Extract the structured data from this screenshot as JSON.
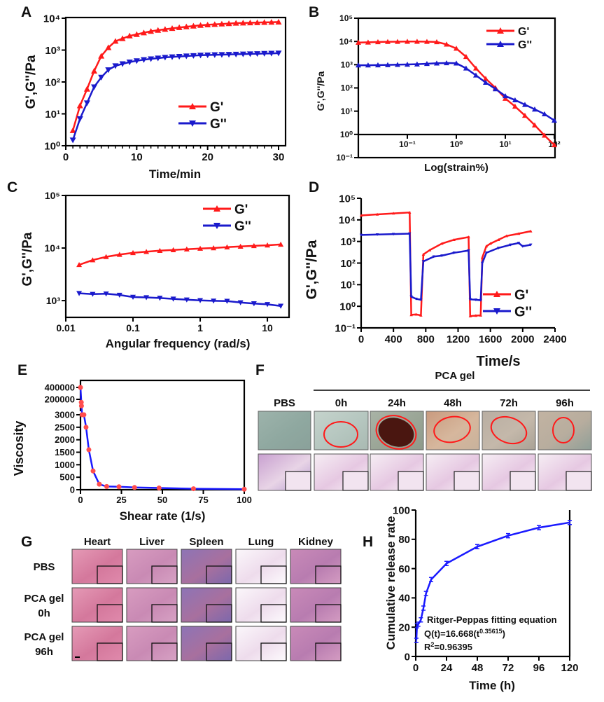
{
  "panel_labels": [
    "A",
    "B",
    "C",
    "D",
    "E",
    "F",
    "G",
    "H"
  ],
  "chart_data": [
    {
      "panel": "A",
      "type": "line",
      "xlabel": "Time/min",
      "ylabel": "G',G''/Pa",
      "xscale": "linear",
      "yscale": "log",
      "xlim": [
        0,
        30
      ],
      "ylim": [
        1,
        10000
      ],
      "xticks": [
        0,
        10,
        20,
        30
      ],
      "xtick_labels": [
        "0",
        "10",
        "20",
        "30"
      ],
      "yticks": [
        1,
        10,
        100,
        1000,
        10000
      ],
      "ytick_labels": [
        "10⁰",
        "10¹",
        "10²",
        "10³",
        "10⁴"
      ],
      "legend": "bottom-right",
      "grid": false,
      "x": [
        1,
        2,
        3,
        4,
        5,
        6,
        7,
        8,
        9,
        10,
        11,
        12,
        13,
        14,
        15,
        16,
        17,
        18,
        19,
        20,
        21,
        22,
        23,
        24,
        25,
        26,
        27,
        28,
        29,
        30
      ],
      "series": [
        {
          "name": "G'",
          "color": "#ff1a1a",
          "marker": "triangle-up",
          "values": [
            3,
            18,
            60,
            220,
            650,
            1200,
            1900,
            2300,
            2800,
            3100,
            3500,
            3900,
            4200,
            4500,
            4800,
            5100,
            5400,
            5700,
            6000,
            6200,
            6400,
            6600,
            6800,
            7000,
            7100,
            7200,
            7300,
            7400,
            7500,
            7600
          ]
        },
        {
          "name": "G''",
          "color": "#1a1acc",
          "marker": "triangle-down",
          "values": [
            1.5,
            7,
            22,
            70,
            140,
            240,
            320,
            370,
            420,
            460,
            500,
            530,
            560,
            590,
            610,
            630,
            650,
            670,
            690,
            700,
            710,
            720,
            730,
            740,
            750,
            760,
            770,
            780,
            790,
            800
          ]
        }
      ]
    },
    {
      "panel": "B",
      "type": "line",
      "xlabel": "Log(strain%)",
      "ylabel": "G',G''/Pa",
      "xscale": "log",
      "yscale": "log",
      "xlim": [
        0.01,
        100
      ],
      "ylim": [
        0.1,
        100000
      ],
      "xticks": [
        0.1,
        1,
        10,
        100
      ],
      "xtick_labels": [
        "10⁻¹",
        "10⁰",
        "10¹",
        "10²"
      ],
      "yticks": [
        0.1,
        1,
        10,
        100,
        1000,
        10000,
        100000
      ],
      "ytick_labels": [
        "10⁻¹",
        "10⁰",
        "10¹",
        "10²",
        "10³",
        "10⁴",
        "10⁵"
      ],
      "legend": "top-right",
      "grid": false,
      "x": [
        0.01,
        0.0158,
        0.0251,
        0.0398,
        0.0631,
        0.1,
        0.158,
        0.251,
        0.398,
        0.631,
        1,
        1.58,
        2.51,
        3.98,
        6.31,
        10,
        15.8,
        25.1,
        39.8,
        63.1,
        100
      ],
      "series": [
        {
          "name": "G'",
          "color": "#ff1a1a",
          "marker": "triangle-up",
          "values": [
            9000,
            9200,
            9500,
            9700,
            9800,
            9900,
            9900,
            9800,
            9500,
            7500,
            5000,
            2200,
            700,
            250,
            100,
            35,
            16,
            6.5,
            2.5,
            0.9,
            0.35
          ]
        },
        {
          "name": "G''",
          "color": "#1a1acc",
          "marker": "triangle-up",
          "values": [
            950,
            950,
            960,
            980,
            1000,
            1020,
            1050,
            1100,
            1150,
            1180,
            1150,
            700,
            350,
            170,
            90,
            45,
            30,
            19,
            12,
            7.5,
            4
          ]
        }
      ]
    },
    {
      "panel": "C",
      "type": "line",
      "xlabel": "Angular frequency (rad/s)",
      "ylabel": "G',G''/Pa",
      "xscale": "log",
      "yscale": "log",
      "xlim": [
        0.01,
        21
      ],
      "ylim": [
        480,
        100000
      ],
      "xticks": [
        0.01,
        0.1,
        1,
        10
      ],
      "xtick_labels": [
        "0.01",
        "0.1",
        "1",
        "10"
      ],
      "yticks": [
        1000,
        10000,
        100000
      ],
      "ytick_labels": [
        "10³",
        "10⁴",
        "10⁵"
      ],
      "legend": "top-right",
      "grid": false,
      "x": [
        0.0158,
        0.0251,
        0.0398,
        0.0631,
        0.1,
        0.158,
        0.251,
        0.398,
        0.631,
        1,
        1.58,
        2.51,
        3.98,
        6.31,
        10,
        15.8
      ],
      "series": [
        {
          "name": "G'",
          "color": "#ff1a1a",
          "marker": "triangle-up",
          "values": [
            4800,
            5900,
            6800,
            7500,
            8100,
            8500,
            8900,
            9200,
            9500,
            9800,
            10000,
            10400,
            10700,
            11000,
            11300,
            11700
          ]
        },
        {
          "name": "G''",
          "color": "#1a1acc",
          "marker": "triangle-down",
          "values": [
            1380,
            1330,
            1350,
            1280,
            1170,
            1150,
            1120,
            1080,
            1040,
            1010,
            990,
            980,
            920,
            880,
            850,
            790
          ]
        }
      ]
    },
    {
      "panel": "D",
      "type": "line",
      "xlabel": "Time/s",
      "ylabel": "G',G''/Pa",
      "xscale": "linear",
      "yscale": "log",
      "xlim": [
        0,
        2400
      ],
      "ylim": [
        0.1,
        100000
      ],
      "xticks": [
        0,
        400,
        800,
        1200,
        1600,
        2000,
        2400
      ],
      "xtick_labels": [
        "0",
        "400",
        "800",
        "1200",
        "1600",
        "2000",
        "2400"
      ],
      "yticks": [
        0.1,
        1,
        10,
        100,
        1000,
        10000,
        100000
      ],
      "ytick_labels": [
        "10⁻¹",
        "10⁰",
        "10¹",
        "10²",
        "10³",
        "10⁴",
        "10⁵"
      ],
      "legend": "bottom-right",
      "grid": false,
      "series": [
        {
          "name": "G'",
          "color": "#ff1a1a",
          "marker": "triangle-up",
          "points": [
            [
              0,
              16000
            ],
            [
              200,
              18000
            ],
            [
              400,
              20000
            ],
            [
              600,
              22000
            ],
            [
              620,
              0.4
            ],
            [
              680,
              0.42
            ],
            [
              740,
              0.38
            ],
            [
              770,
              250
            ],
            [
              850,
              400
            ],
            [
              1000,
              800
            ],
            [
              1150,
              1200
            ],
            [
              1330,
              1600
            ],
            [
              1350,
              0.35
            ],
            [
              1420,
              0.37
            ],
            [
              1480,
              0.38
            ],
            [
              1500,
              180
            ],
            [
              1550,
              600
            ],
            [
              1600,
              800
            ],
            [
              1700,
              1200
            ],
            [
              1800,
              1800
            ],
            [
              1950,
              2300
            ],
            [
              2100,
              3000
            ]
          ]
        },
        {
          "name": "G''",
          "color": "#1a1acc",
          "marker": "triangle-down",
          "points": [
            [
              0,
              2000
            ],
            [
              200,
              2100
            ],
            [
              400,
              2200
            ],
            [
              600,
              2300
            ],
            [
              620,
              2.8
            ],
            [
              680,
              2.2
            ],
            [
              740,
              2.0
            ],
            [
              770,
              120
            ],
            [
              900,
              200
            ],
            [
              1000,
              220
            ],
            [
              1150,
              300
            ],
            [
              1330,
              380
            ],
            [
              1350,
              2.1
            ],
            [
              1420,
              2.0
            ],
            [
              1480,
              1.9
            ],
            [
              1500,
              100
            ],
            [
              1550,
              300
            ],
            [
              1700,
              500
            ],
            [
              1850,
              700
            ],
            [
              1950,
              850
            ],
            [
              2000,
              600
            ],
            [
              2100,
              700
            ]
          ]
        }
      ]
    },
    {
      "panel": "E",
      "type": "line",
      "xlabel": "Shear rate (1/s)",
      "ylabel": "Viscosity",
      "xscale": "linear",
      "yscale": "broken-linear",
      "xlim": [
        0,
        100
      ],
      "ylim": [
        0,
        400000
      ],
      "xticks": [
        0,
        25,
        50,
        75,
        100
      ],
      "xtick_labels": [
        "0",
        "25",
        "50",
        "75",
        "100"
      ],
      "yticks": [
        400000,
        200000,
        3000,
        2500,
        2000,
        1500,
        1000,
        500,
        0
      ],
      "ytick_labels": [
        "400000",
        "200000",
        "3000",
        "2500",
        "2000",
        "1500",
        "1000",
        "500",
        "0"
      ],
      "grid": false,
      "series": [
        {
          "line_color": "#1a1aff",
          "color": "#ff4d4d",
          "marker": "circle",
          "points": [
            [
              0,
              400000
            ],
            [
              0.5,
              150000
            ],
            [
              0.6,
              90000
            ],
            [
              1,
              3000
            ],
            [
              2.1,
              3000
            ],
            [
              3.4,
              2500
            ],
            [
              5.1,
              1600
            ],
            [
              7.7,
              750
            ],
            [
              11.5,
              220
            ],
            [
              16,
              130
            ],
            [
              23.5,
              120
            ],
            [
              33,
              90
            ],
            [
              48,
              70
            ],
            [
              69,
              40
            ],
            [
              100,
              20
            ]
          ]
        }
      ]
    },
    {
      "panel": "H",
      "type": "line",
      "xlabel": "Time (h)",
      "ylabel": "Cumulative release rate",
      "xscale": "linear",
      "yscale": "linear",
      "xlim": [
        0,
        120
      ],
      "ylim": [
        0,
        100
      ],
      "xticks": [
        0,
        24,
        48,
        72,
        96,
        120
      ],
      "xtick_labels": [
        "0",
        "24",
        "48",
        "72",
        "96",
        "120"
      ],
      "yticks": [
        0,
        20,
        40,
        60,
        80,
        100
      ],
      "ytick_labels": [
        "0",
        "20",
        "40",
        "60",
        "80",
        "100"
      ],
      "grid": false,
      "series": [
        {
          "color": "#1a1aff",
          "marker": "error-bar",
          "points": [
            [
              0.5,
              11
            ],
            [
              1,
              21
            ],
            [
              2,
              22
            ],
            [
              4,
              25
            ],
            [
              6,
              33
            ],
            [
              8,
              43
            ],
            [
              12,
              52.5
            ],
            [
              24,
              63.5
            ],
            [
              48,
              75
            ],
            [
              72,
              82.5
            ],
            [
              96,
              88
            ],
            [
              120,
              91.5
            ]
          ]
        }
      ],
      "annotation": {
        "title": "Ritger-Peppas fitting equation",
        "eq_prefix": "Q(t)=16.668(t",
        "eq_exponent": "0.35615",
        "eq_suffix": ")",
        "r2_base": "R",
        "r2_exponent": "2",
        "r2_value": "=0.96395"
      }
    }
  ],
  "panel_F": {
    "group_label": "PCA gel",
    "columns": [
      "PBS",
      "0h",
      "24h",
      "48h",
      "72h",
      "96h"
    ]
  },
  "panel_G": {
    "columns": [
      "Heart",
      "Liver",
      "Spleen",
      "Lung",
      "Kidney"
    ],
    "rows": [
      {
        "line1": "PBS",
        "line2": ""
      },
      {
        "line1": "PCA gel",
        "line2": "0h"
      },
      {
        "line1": "PCA gel",
        "line2": "96h"
      }
    ]
  }
}
